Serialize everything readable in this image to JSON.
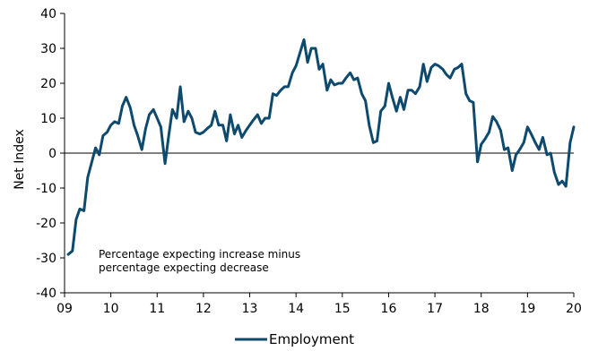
{
  "chart_data": {
    "type": "line",
    "ylabel": "Net Index",
    "ylim": [
      -40,
      40
    ],
    "yticks": [
      -40,
      -30,
      -20,
      -10,
      0,
      10,
      20,
      30,
      40
    ],
    "xlim": [
      2009,
      2020
    ],
    "xticks": [
      {
        "value": 2009,
        "label": "09"
      },
      {
        "value": 2010,
        "label": "10"
      },
      {
        "value": 2011,
        "label": "11"
      },
      {
        "value": 2012,
        "label": "12"
      },
      {
        "value": 2013,
        "label": "13"
      },
      {
        "value": 2014,
        "label": "14"
      },
      {
        "value": 2015,
        "label": "15"
      },
      {
        "value": 2016,
        "label": "16"
      },
      {
        "value": 2017,
        "label": "17"
      },
      {
        "value": 2018,
        "label": "18"
      },
      {
        "value": 2019,
        "label": "19"
      },
      {
        "value": 2020,
        "label": "20"
      }
    ],
    "annotation_lines": [
      "Percentage expecting increase minus",
      "percentage expecting decrease"
    ],
    "zero_line": true,
    "grid": false,
    "legend_position": "bottom",
    "series": [
      {
        "name": "Employment",
        "color": "#0d4a6e",
        "x": [
          2009.08,
          2009.17,
          2009.25,
          2009.33,
          2009.42,
          2009.5,
          2009.58,
          2009.67,
          2009.75,
          2009.83,
          2009.92,
          2010.0,
          2010.08,
          2010.17,
          2010.25,
          2010.33,
          2010.42,
          2010.5,
          2010.58,
          2010.67,
          2010.75,
          2010.83,
          2010.92,
          2011.0,
          2011.08,
          2011.17,
          2011.25,
          2011.33,
          2011.42,
          2011.5,
          2011.58,
          2011.67,
          2011.75,
          2011.83,
          2011.92,
          2012.0,
          2012.08,
          2012.17,
          2012.25,
          2012.33,
          2012.42,
          2012.5,
          2012.58,
          2012.67,
          2012.75,
          2012.83,
          2012.92,
          2013.0,
          2013.08,
          2013.17,
          2013.25,
          2013.33,
          2013.42,
          2013.5,
          2013.58,
          2013.67,
          2013.75,
          2013.83,
          2013.92,
          2014.0,
          2014.08,
          2014.17,
          2014.25,
          2014.33,
          2014.42,
          2014.5,
          2014.58,
          2014.67,
          2014.75,
          2014.83,
          2014.92,
          2015.0,
          2015.08,
          2015.17,
          2015.25,
          2015.33,
          2015.42,
          2015.5,
          2015.58,
          2015.67,
          2015.75,
          2015.83,
          2015.92,
          2016.0,
          2016.08,
          2016.17,
          2016.25,
          2016.33,
          2016.42,
          2016.5,
          2016.58,
          2016.67,
          2016.75,
          2016.83,
          2016.92,
          2017.0,
          2017.08,
          2017.17,
          2017.25,
          2017.33,
          2017.42,
          2017.5,
          2017.58,
          2017.67,
          2017.75,
          2017.83,
          2017.92,
          2018.0,
          2018.08,
          2018.17,
          2018.25,
          2018.33,
          2018.42,
          2018.5,
          2018.58,
          2018.67,
          2018.75,
          2018.83,
          2018.92,
          2019.0,
          2019.08,
          2019.17,
          2019.25,
          2019.33,
          2019.42,
          2019.5,
          2019.58,
          2019.67,
          2019.75,
          2019.83,
          2019.92,
          2020.0
        ],
        "y": [
          -29,
          -28,
          -19,
          -16,
          -16.5,
          -7,
          -3,
          1.5,
          -0.5,
          5,
          6,
          8,
          9,
          8.5,
          13.5,
          16,
          13,
          8,
          5,
          1,
          7,
          11,
          12.5,
          10,
          7.5,
          -3,
          5,
          12.5,
          10,
          19,
          9,
          12,
          10,
          6,
          5.5,
          6,
          7,
          8,
          12,
          8,
          8,
          3.5,
          11,
          5.5,
          8,
          4.5,
          6.5,
          8,
          9.5,
          11,
          8.5,
          10,
          10,
          17,
          16.5,
          18,
          19,
          19,
          23,
          25,
          28.5,
          32.5,
          26,
          30,
          30,
          24,
          25.5,
          18,
          21,
          19.5,
          20,
          20,
          21.5,
          23,
          21,
          21.5,
          17,
          15,
          8,
          3,
          3.5,
          12,
          13.5,
          20,
          16,
          12,
          16,
          12.5,
          18,
          18,
          17,
          19,
          25.5,
          20.5,
          24.5,
          25.5,
          25,
          24,
          22.5,
          21.5,
          24,
          24.5,
          25.5,
          17,
          15,
          14.5,
          -2.5,
          2.5,
          4,
          6,
          10.5,
          9,
          6.5,
          1,
          1.5,
          -5,
          -0.5,
          1,
          3,
          7.5,
          5.5,
          3,
          1,
          4.5,
          -0.5,
          0,
          -5.5,
          -9,
          -8,
          -9.5,
          3,
          7.5
        ]
      }
    ]
  }
}
